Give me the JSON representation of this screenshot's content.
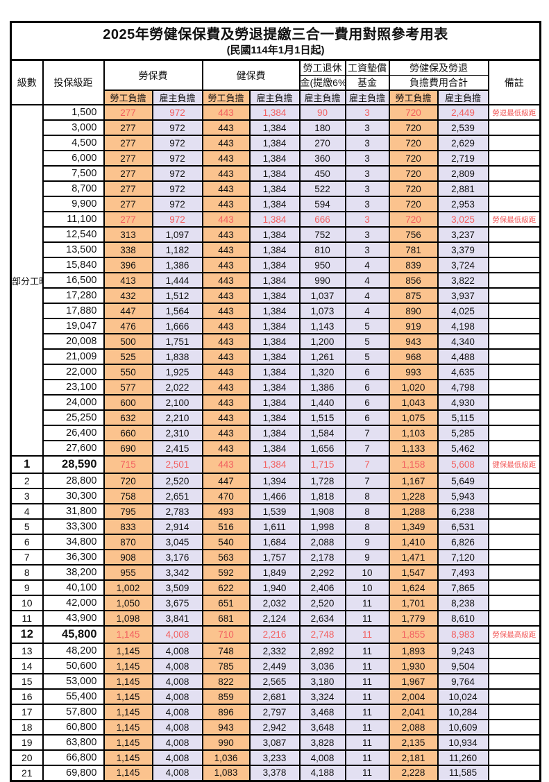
{
  "title": "2025年勞健保保費及勞退提繳三合一費用對照參考用表",
  "subtitle": "(民國114年1月1日起)",
  "colors": {
    "worker_bg": "#fbc38e",
    "employer_bg": "#e3e0f2",
    "red": "#f25f5f",
    "border": "#000000"
  },
  "header": {
    "level": "級數",
    "bracket": "投保級距",
    "labor_fee": "勞保費",
    "health_fee": "健保費",
    "pension_line1": "勞工退休",
    "pension_line2": "金(提繳6%)",
    "wage_fund_line1": "工資墊償",
    "wage_fund_line2": "基金",
    "total_line1": "勞健保及勞退",
    "total_line2": "負擔費用合計",
    "remark": "備註",
    "worker_share": "勞工負擔",
    "employer_share": "雇主負擔"
  },
  "part_time_label": "部分工時",
  "part_time_rowspan": 23,
  "rows": [
    {
      "level": null,
      "bracket": "1,500",
      "values": [
        "277",
        "972",
        "443",
        "1,384",
        "90",
        "3",
        "720",
        "2,449"
      ],
      "remark": "勞退最低級距",
      "red": true,
      "bold": false
    },
    {
      "level": null,
      "bracket": "3,000",
      "values": [
        "277",
        "972",
        "443",
        "1,384",
        "180",
        "3",
        "720",
        "2,539"
      ],
      "remark": "",
      "red": false,
      "bold": false
    },
    {
      "level": null,
      "bracket": "4,500",
      "values": [
        "277",
        "972",
        "443",
        "1,384",
        "270",
        "3",
        "720",
        "2,629"
      ],
      "remark": "",
      "red": false,
      "bold": false
    },
    {
      "level": null,
      "bracket": "6,000",
      "values": [
        "277",
        "972",
        "443",
        "1,384",
        "360",
        "3",
        "720",
        "2,719"
      ],
      "remark": "",
      "red": false,
      "bold": false
    },
    {
      "level": null,
      "bracket": "7,500",
      "values": [
        "277",
        "972",
        "443",
        "1,384",
        "450",
        "3",
        "720",
        "2,809"
      ],
      "remark": "",
      "red": false,
      "bold": false
    },
    {
      "level": null,
      "bracket": "8,700",
      "values": [
        "277",
        "972",
        "443",
        "1,384",
        "522",
        "3",
        "720",
        "2,881"
      ],
      "remark": "",
      "red": false,
      "bold": false
    },
    {
      "level": null,
      "bracket": "9,900",
      "values": [
        "277",
        "972",
        "443",
        "1,384",
        "594",
        "3",
        "720",
        "2,953"
      ],
      "remark": "",
      "red": false,
      "bold": false
    },
    {
      "level": null,
      "bracket": "11,100",
      "values": [
        "277",
        "972",
        "443",
        "1,384",
        "666",
        "3",
        "720",
        "3,025"
      ],
      "remark": "勞保最低級距",
      "red": true,
      "bold": false
    },
    {
      "level": null,
      "bracket": "12,540",
      "values": [
        "313",
        "1,097",
        "443",
        "1,384",
        "752",
        "3",
        "756",
        "3,237"
      ],
      "remark": "",
      "red": false,
      "bold": false
    },
    {
      "level": null,
      "bracket": "13,500",
      "values": [
        "338",
        "1,182",
        "443",
        "1,384",
        "810",
        "3",
        "781",
        "3,379"
      ],
      "remark": "",
      "red": false,
      "bold": false
    },
    {
      "level": null,
      "bracket": "15,840",
      "values": [
        "396",
        "1,386",
        "443",
        "1,384",
        "950",
        "4",
        "839",
        "3,724"
      ],
      "remark": "",
      "red": false,
      "bold": false
    },
    {
      "level": null,
      "bracket": "16,500",
      "values": [
        "413",
        "1,444",
        "443",
        "1,384",
        "990",
        "4",
        "856",
        "3,822"
      ],
      "remark": "",
      "red": false,
      "bold": false
    },
    {
      "level": null,
      "bracket": "17,280",
      "values": [
        "432",
        "1,512",
        "443",
        "1,384",
        "1,037",
        "4",
        "875",
        "3,937"
      ],
      "remark": "",
      "red": false,
      "bold": false
    },
    {
      "level": null,
      "bracket": "17,880",
      "values": [
        "447",
        "1,564",
        "443",
        "1,384",
        "1,073",
        "4",
        "890",
        "4,025"
      ],
      "remark": "",
      "red": false,
      "bold": false
    },
    {
      "level": null,
      "bracket": "19,047",
      "values": [
        "476",
        "1,666",
        "443",
        "1,384",
        "1,143",
        "5",
        "919",
        "4,198"
      ],
      "remark": "",
      "red": false,
      "bold": false
    },
    {
      "level": null,
      "bracket": "20,008",
      "values": [
        "500",
        "1,751",
        "443",
        "1,384",
        "1,200",
        "5",
        "943",
        "4,340"
      ],
      "remark": "",
      "red": false,
      "bold": false
    },
    {
      "level": null,
      "bracket": "21,009",
      "values": [
        "525",
        "1,838",
        "443",
        "1,384",
        "1,261",
        "5",
        "968",
        "4,488"
      ],
      "remark": "",
      "red": false,
      "bold": false
    },
    {
      "level": null,
      "bracket": "22,000",
      "values": [
        "550",
        "1,925",
        "443",
        "1,384",
        "1,320",
        "6",
        "993",
        "4,635"
      ],
      "remark": "",
      "red": false,
      "bold": false
    },
    {
      "level": null,
      "bracket": "23,100",
      "values": [
        "577",
        "2,022",
        "443",
        "1,384",
        "1,386",
        "6",
        "1,020",
        "4,798"
      ],
      "remark": "",
      "red": false,
      "bold": false
    },
    {
      "level": null,
      "bracket": "24,000",
      "values": [
        "600",
        "2,100",
        "443",
        "1,384",
        "1,440",
        "6",
        "1,043",
        "4,930"
      ],
      "remark": "",
      "red": false,
      "bold": false
    },
    {
      "level": null,
      "bracket": "25,250",
      "values": [
        "632",
        "2,210",
        "443",
        "1,384",
        "1,515",
        "6",
        "1,075",
        "5,115"
      ],
      "remark": "",
      "red": false,
      "bold": false
    },
    {
      "level": null,
      "bracket": "26,400",
      "values": [
        "660",
        "2,310",
        "443",
        "1,384",
        "1,584",
        "7",
        "1,103",
        "5,285"
      ],
      "remark": "",
      "red": false,
      "bold": false
    },
    {
      "level": null,
      "bracket": "27,600",
      "values": [
        "690",
        "2,415",
        "443",
        "1,384",
        "1,656",
        "7",
        "1,133",
        "5,462"
      ],
      "remark": "",
      "red": false,
      "bold": false
    },
    {
      "level": "1",
      "bracket": "28,590",
      "values": [
        "715",
        "2,501",
        "443",
        "1,384",
        "1,715",
        "7",
        "1,158",
        "5,608"
      ],
      "remark": "健保最低級距",
      "red": true,
      "bold": true
    },
    {
      "level": "2",
      "bracket": "28,800",
      "values": [
        "720",
        "2,520",
        "447",
        "1,394",
        "1,728",
        "7",
        "1,167",
        "5,649"
      ],
      "remark": "",
      "red": false,
      "bold": false
    },
    {
      "level": "3",
      "bracket": "30,300",
      "values": [
        "758",
        "2,651",
        "470",
        "1,466",
        "1,818",
        "8",
        "1,228",
        "5,943"
      ],
      "remark": "",
      "red": false,
      "bold": false
    },
    {
      "level": "4",
      "bracket": "31,800",
      "values": [
        "795",
        "2,783",
        "493",
        "1,539",
        "1,908",
        "8",
        "1,288",
        "6,238"
      ],
      "remark": "",
      "red": false,
      "bold": false
    },
    {
      "level": "5",
      "bracket": "33,300",
      "values": [
        "833",
        "2,914",
        "516",
        "1,611",
        "1,998",
        "8",
        "1,349",
        "6,531"
      ],
      "remark": "",
      "red": false,
      "bold": false
    },
    {
      "level": "6",
      "bracket": "34,800",
      "values": [
        "870",
        "3,045",
        "540",
        "1,684",
        "2,088",
        "9",
        "1,410",
        "6,826"
      ],
      "remark": "",
      "red": false,
      "bold": false
    },
    {
      "level": "7",
      "bracket": "36,300",
      "values": [
        "908",
        "3,176",
        "563",
        "1,757",
        "2,178",
        "9",
        "1,471",
        "7,120"
      ],
      "remark": "",
      "red": false,
      "bold": false
    },
    {
      "level": "8",
      "bracket": "38,200",
      "values": [
        "955",
        "3,342",
        "592",
        "1,849",
        "2,292",
        "10",
        "1,547",
        "7,493"
      ],
      "remark": "",
      "red": false,
      "bold": false
    },
    {
      "level": "9",
      "bracket": "40,100",
      "values": [
        "1,002",
        "3,509",
        "622",
        "1,940",
        "2,406",
        "10",
        "1,624",
        "7,865"
      ],
      "remark": "",
      "red": false,
      "bold": false
    },
    {
      "level": "10",
      "bracket": "42,000",
      "values": [
        "1,050",
        "3,675",
        "651",
        "2,032",
        "2,520",
        "11",
        "1,701",
        "8,238"
      ],
      "remark": "",
      "red": false,
      "bold": false
    },
    {
      "level": "11",
      "bracket": "43,900",
      "values": [
        "1,098",
        "3,841",
        "681",
        "2,124",
        "2,634",
        "11",
        "1,779",
        "8,610"
      ],
      "remark": "",
      "red": false,
      "bold": false
    },
    {
      "level": "12",
      "bracket": "45,800",
      "values": [
        "1,145",
        "4,008",
        "710",
        "2,216",
        "2,748",
        "11",
        "1,855",
        "8,983"
      ],
      "remark": "勞保最高級距",
      "red": true,
      "bold": true
    },
    {
      "level": "13",
      "bracket": "48,200",
      "values": [
        "1,145",
        "4,008",
        "748",
        "2,332",
        "2,892",
        "11",
        "1,893",
        "9,243"
      ],
      "remark": "",
      "red": false,
      "bold": false
    },
    {
      "level": "14",
      "bracket": "50,600",
      "values": [
        "1,145",
        "4,008",
        "785",
        "2,449",
        "3,036",
        "11",
        "1,930",
        "9,504"
      ],
      "remark": "",
      "red": false,
      "bold": false
    },
    {
      "level": "15",
      "bracket": "53,000",
      "values": [
        "1,145",
        "4,008",
        "822",
        "2,565",
        "3,180",
        "11",
        "1,967",
        "9,764"
      ],
      "remark": "",
      "red": false,
      "bold": false
    },
    {
      "level": "16",
      "bracket": "55,400",
      "values": [
        "1,145",
        "4,008",
        "859",
        "2,681",
        "3,324",
        "11",
        "2,004",
        "10,024"
      ],
      "remark": "",
      "red": false,
      "bold": false
    },
    {
      "level": "17",
      "bracket": "57,800",
      "values": [
        "1,145",
        "4,008",
        "896",
        "2,797",
        "3,468",
        "11",
        "2,041",
        "10,284"
      ],
      "remark": "",
      "red": false,
      "bold": false
    },
    {
      "level": "18",
      "bracket": "60,800",
      "values": [
        "1,145",
        "4,008",
        "943",
        "2,942",
        "3,648",
        "11",
        "2,088",
        "10,609"
      ],
      "remark": "",
      "red": false,
      "bold": false
    },
    {
      "level": "19",
      "bracket": "63,800",
      "values": [
        "1,145",
        "4,008",
        "990",
        "3,087",
        "3,828",
        "11",
        "2,135",
        "10,934"
      ],
      "remark": "",
      "red": false,
      "bold": false
    },
    {
      "level": "20",
      "bracket": "66,800",
      "values": [
        "1,145",
        "4,008",
        "1,036",
        "3,233",
        "4,008",
        "11",
        "2,181",
        "11,260"
      ],
      "remark": "",
      "red": false,
      "bold": false
    },
    {
      "level": "21",
      "bracket": "69,800",
      "values": [
        "1,145",
        "4,008",
        "1,083",
        "3,378",
        "4,188",
        "11",
        "2,228",
        "11,585"
      ],
      "remark": "",
      "red": false,
      "bold": false
    }
  ]
}
